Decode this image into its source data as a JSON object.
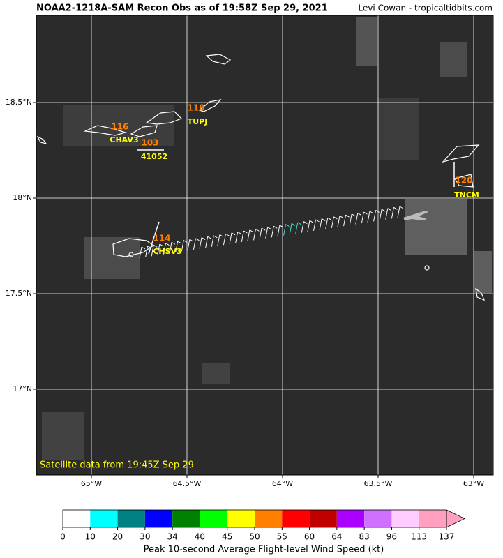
{
  "header": {
    "title": "NOAA2-1218A-SAM Recon Obs as of 19:58Z Sep 29, 2021",
    "credit": "Levi Cowan - tropicaltidbits.com"
  },
  "map": {
    "lon_labels": [
      "65°W",
      "64.5°W",
      "64°W",
      "63.5°W",
      "63°W"
    ],
    "lat_labels": [
      "18.5°N",
      "18°N",
      "17.5°N",
      "17°N"
    ],
    "stations": [
      {
        "value": "116",
        "id": "CHAV3"
      },
      {
        "value": "103",
        "id": "41052"
      },
      {
        "value": "118",
        "id": "TUPJ"
      },
      {
        "value": "120",
        "id": "TNCM"
      },
      {
        "value": "114",
        "id": "CHSV3"
      }
    ],
    "note": "Satellite data from 19:45Z Sep 29"
  },
  "colorbar": {
    "ticks": [
      0,
      10,
      20,
      30,
      34,
      40,
      45,
      50,
      55,
      60,
      64,
      83,
      96,
      113,
      137
    ],
    "colors": [
      "#ffffff",
      "#00ffff",
      "#008080",
      "#0000ff",
      "#008000",
      "#00ff00",
      "#ffff00",
      "#ff8000",
      "#ff0000",
      "#c00000",
      "#aa00ff",
      "#d070ff",
      "#ffccff",
      "#ffa0c0"
    ],
    "label": "Peak 10-second Average Flight-level Wind Speed (kt)"
  }
}
